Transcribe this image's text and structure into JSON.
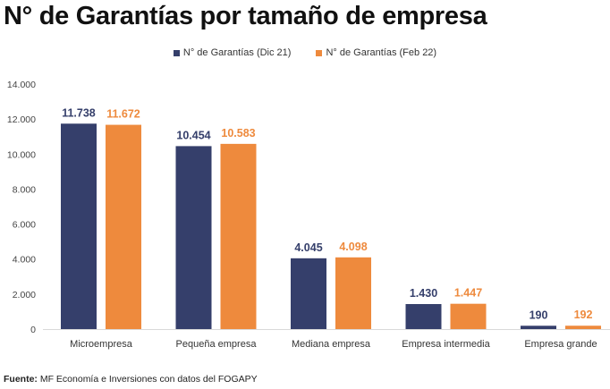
{
  "chart_data": {
    "type": "bar",
    "title": "N° de Garantías por tamaño de empresa",
    "categories": [
      "Microempresa",
      "Pequeña empresa",
      "Mediana empresa",
      "Empresa intermedia",
      "Empresa grande"
    ],
    "series": [
      {
        "name": "N° de Garantías (Dic 21)",
        "values": [
          11738,
          10454,
          4045,
          1430,
          190
        ],
        "labels": [
          "11.738",
          "10.454",
          "4.045",
          "1.430",
          "190"
        ],
        "color": "#353f6b"
      },
      {
        "name": "N° de Garantías (Feb 22)",
        "values": [
          11672,
          10583,
          4098,
          1447,
          192
        ],
        "labels": [
          "11.672",
          "10.583",
          "4.098",
          "1.447",
          "192"
        ],
        "color": "#ee8a3d"
      }
    ],
    "ylim": [
      0,
      14000
    ],
    "yticks": [
      0,
      2000,
      4000,
      6000,
      8000,
      10000,
      12000,
      14000
    ],
    "ytick_labels": [
      "0",
      "2.000",
      "4.000",
      "6.000",
      "8.000",
      "10.000",
      "12.000",
      "14.000"
    ],
    "grid": false,
    "legend": "top-center",
    "xlabel": "",
    "ylabel": ""
  },
  "source": {
    "label": "Fuente:",
    "text": " MF Economía e Inversiones con datos del FOGAPY"
  }
}
